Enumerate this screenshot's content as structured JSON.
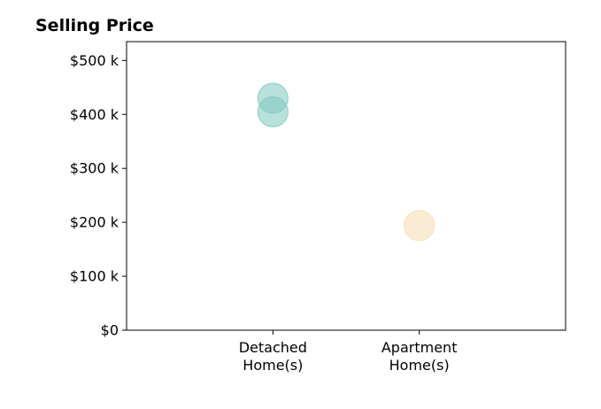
{
  "chart_data": {
    "type": "scatter",
    "title": "Selling Price",
    "xlabel": "",
    "ylabel": "",
    "categories": [
      [
        "Detached",
        "Home(s)"
      ],
      [
        "Apartment",
        "Home(s)"
      ]
    ],
    "xlim": [
      -1,
      2
    ],
    "ylim": [
      0,
      535000
    ],
    "yticks": [
      {
        "value": 0,
        "label": "$0"
      },
      {
        "value": 100000,
        "label": "$100 k"
      },
      {
        "value": 200000,
        "label": "$200 k"
      },
      {
        "value": 300000,
        "label": "$300 k"
      },
      {
        "value": 400000,
        "label": "$400 k"
      },
      {
        "value": 500000,
        "label": "$500 k"
      }
    ],
    "points": [
      {
        "category_index": 0,
        "value": 430000,
        "color": "#7fc9bf"
      },
      {
        "category_index": 0,
        "value": 405000,
        "color": "#7fc9bf"
      },
      {
        "category_index": 1,
        "value": 194000,
        "color": "#f5ddb0"
      }
    ],
    "grid": false,
    "legend": "none"
  }
}
